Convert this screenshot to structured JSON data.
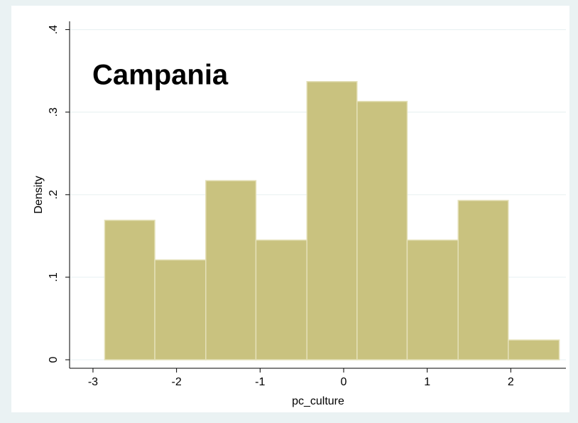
{
  "chart_data": {
    "type": "histogram",
    "annotation": "Campania",
    "xlabel": "pc_culture",
    "ylabel": "Density",
    "bins": [
      -2.86,
      -2.26,
      -1.65,
      -1.05,
      -0.44,
      0.16,
      0.76,
      1.37,
      1.97,
      2.58
    ],
    "values": [
      0.169,
      0.121,
      0.217,
      0.145,
      0.337,
      0.313,
      0.145,
      0.193,
      0.024
    ],
    "color": "#c9c27f",
    "edge_color": "#e4e0b8",
    "xlim": [
      -3.28,
      2.66
    ],
    "xticks": [
      -3,
      -2,
      -1,
      0,
      1,
      2
    ],
    "ylim": [
      -0.0103,
      0.41
    ],
    "yticks": [
      0,
      {
        "value": 0.1,
        "label": ".1"
      },
      {
        "value": 0.2,
        "label": ".2"
      },
      {
        "value": 0.3,
        "label": ".3"
      },
      {
        "value": 0.4,
        "label": ".4"
      }
    ],
    "grid": true
  }
}
